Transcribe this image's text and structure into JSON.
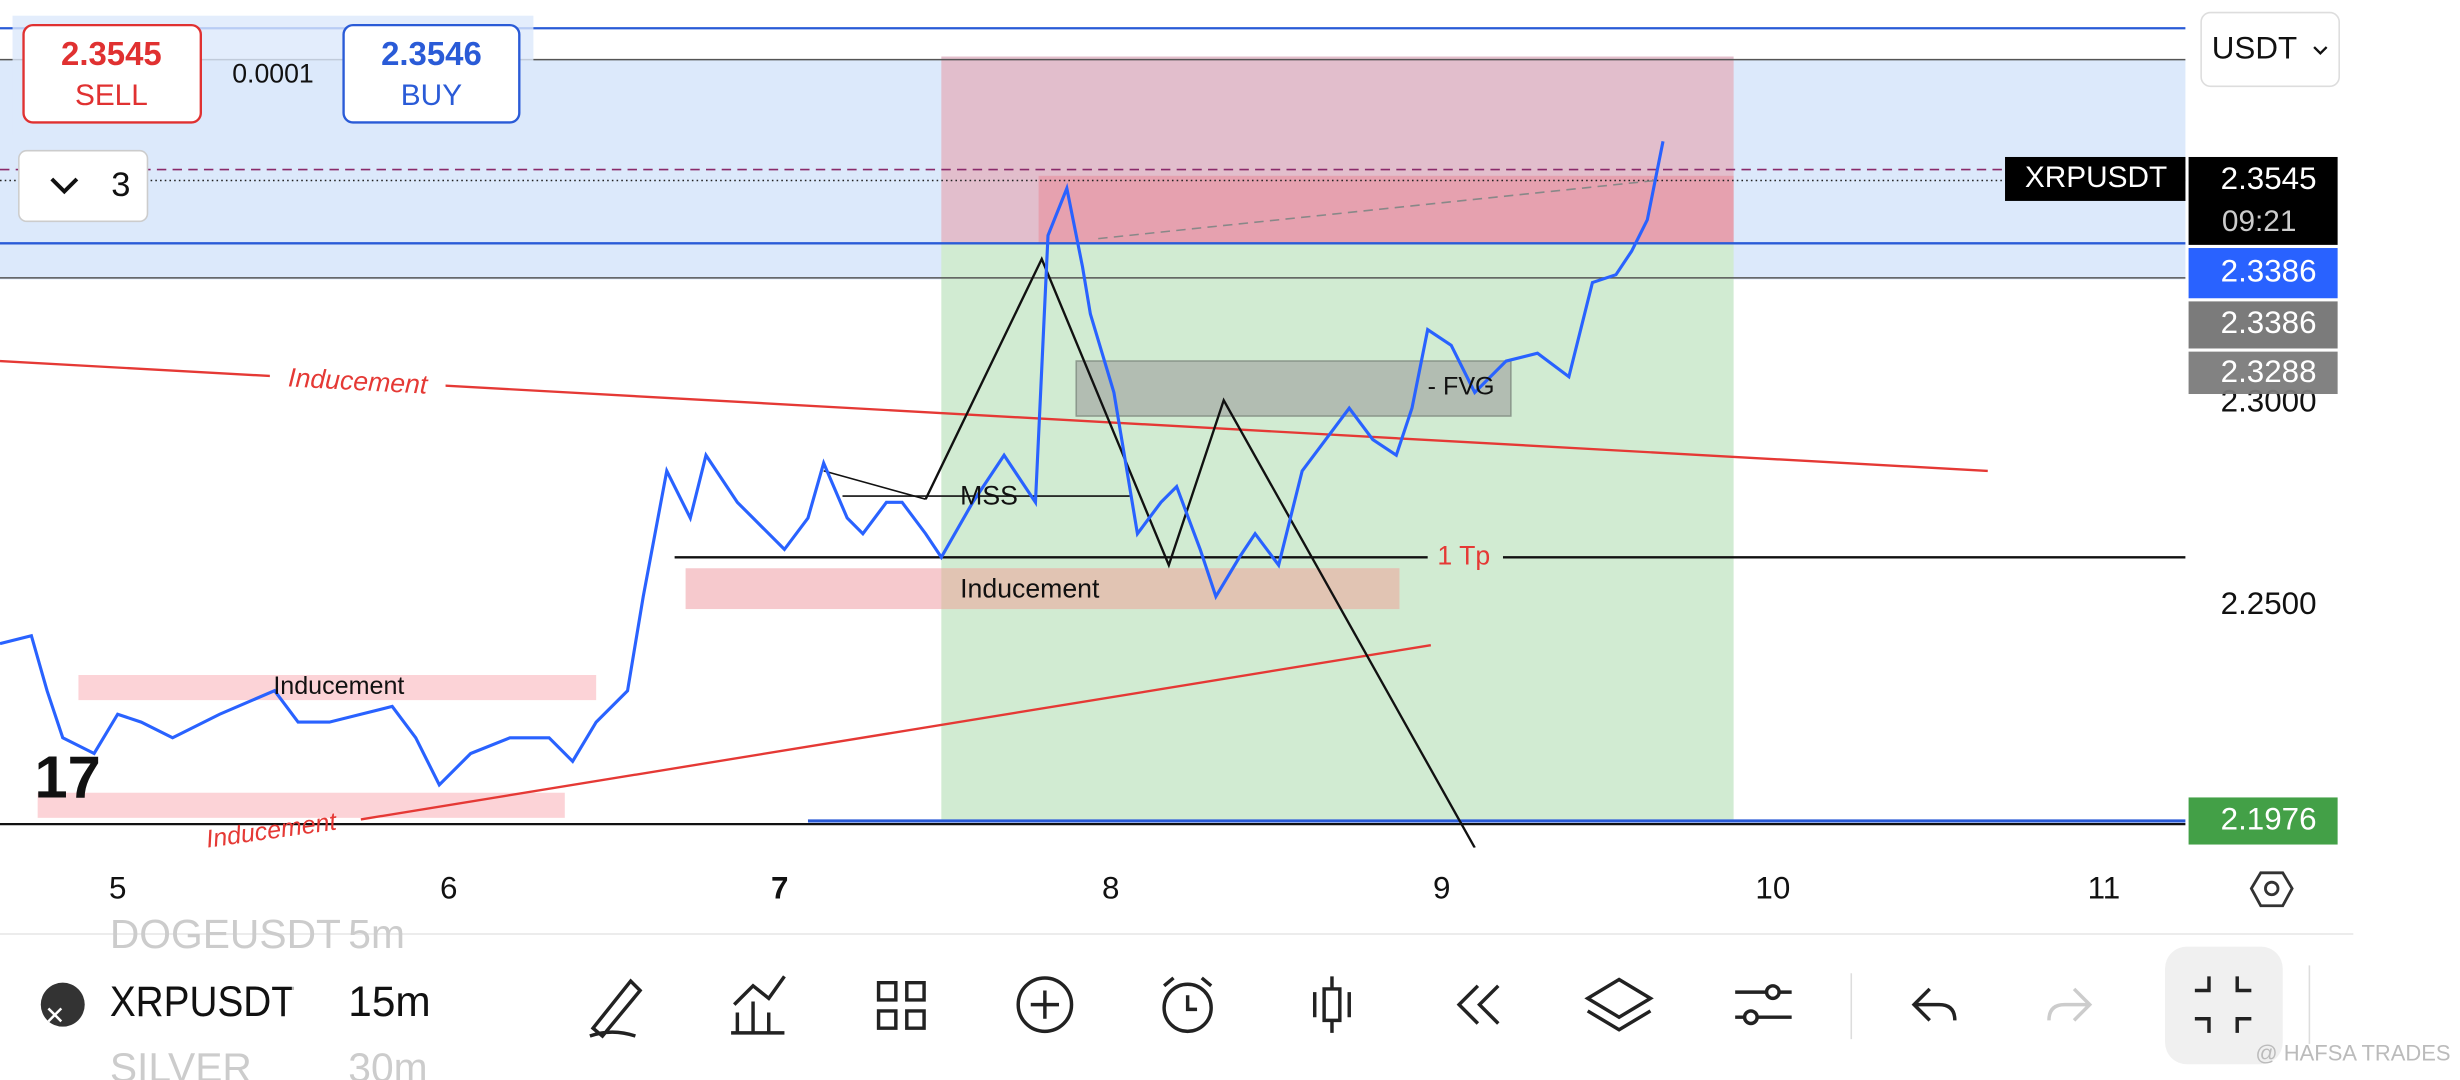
{
  "order_panel": {
    "sell_price": "2.3545",
    "sell_label": "SELL",
    "spread": "0.0001",
    "buy_price": "2.3546",
    "buy_label": "BUY"
  },
  "currency": "USDT",
  "layout_count": "3",
  "price_scale": {
    "symbol": "XRPUSDT",
    "last_price": "2.3545",
    "countdown": "09:21",
    "labels": [
      "2.3386",
      "2.3386",
      "2.3288",
      "2.3000",
      "2.2500",
      "2.1976"
    ]
  },
  "drawings": {
    "inducement_labels": [
      "Inducement",
      "Inducement",
      "Inducement",
      "Inducement"
    ],
    "mss": "MSS",
    "fvg": "- FVG",
    "tp": "1 Tp"
  },
  "time_axis": [
    "5",
    "6",
    "7",
    "8",
    "9",
    "10",
    "11"
  ],
  "toolbar": {
    "symbol": "XRPUSDT",
    "interval": "15m",
    "above_symbol": "DOGEUSDT",
    "above_interval": "5m",
    "below_symbol": "SILVER",
    "below_interval": "30m"
  },
  "watermark": "@ HAFSA TRADES"
}
